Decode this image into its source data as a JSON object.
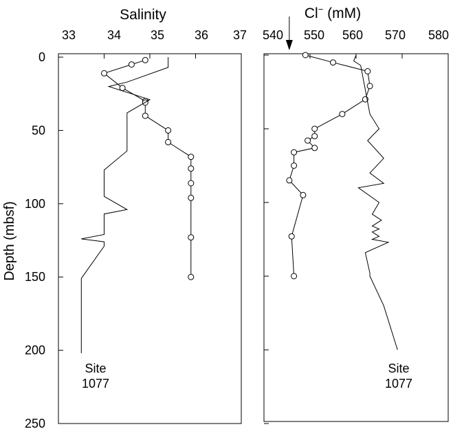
{
  "figure": {
    "ylabel": "Depth (mbsf)",
    "yticks": [
      0,
      50,
      100,
      150,
      200,
      250
    ]
  },
  "chart_data": [
    {
      "type": "line",
      "title": "",
      "xlabel": "Salinity",
      "ylabel": "Depth (mbsf)",
      "xlim": [
        33,
        37
      ],
      "ylim": [
        0,
        250
      ],
      "y_inverted": true,
      "x_axis_position": "top",
      "xticks": [
        33,
        34,
        35,
        36,
        37
      ],
      "grid": false,
      "annotation": {
        "line1": "Site",
        "line2": "1077"
      },
      "series": [
        {
          "marker": "open-circle",
          "points": [
            {
              "x": 34.9,
              "y": 2
            },
            {
              "x": 34.6,
              "y": 5
            },
            {
              "x": 34.0,
              "y": 11
            },
            {
              "x": 34.4,
              "y": 21
            },
            {
              "x": 34.9,
              "y": 30
            },
            {
              "x": 34.9,
              "y": 31
            },
            {
              "x": 34.9,
              "y": 40
            },
            {
              "x": 35.4,
              "y": 50
            },
            {
              "x": 35.4,
              "y": 58
            },
            {
              "x": 35.9,
              "y": 68
            },
            {
              "x": 35.9,
              "y": 76
            },
            {
              "x": 35.9,
              "y": 86
            },
            {
              "x": 35.9,
              "y": 96
            },
            {
              "x": 35.9,
              "y": 123
            },
            {
              "x": 35.9,
              "y": 150
            }
          ]
        },
        {
          "marker": "none",
          "points": [
            {
              "x": 35.4,
              "y": 0
            },
            {
              "x": 35.4,
              "y": 7
            },
            {
              "x": 34.5,
              "y": 17
            },
            {
              "x": 34.1,
              "y": 20
            },
            {
              "x": 35.0,
              "y": 29
            },
            {
              "x": 34.5,
              "y": 38
            },
            {
              "x": 34.5,
              "y": 64
            },
            {
              "x": 34.0,
              "y": 77
            },
            {
              "x": 34.0,
              "y": 95
            },
            {
              "x": 34.5,
              "y": 104
            },
            {
              "x": 34.0,
              "y": 107
            },
            {
              "x": 34.0,
              "y": 121
            },
            {
              "x": 33.5,
              "y": 124
            },
            {
              "x": 34.0,
              "y": 126
            },
            {
              "x": 34.0,
              "y": 129
            },
            {
              "x": 33.5,
              "y": 151
            },
            {
              "x": 33.5,
              "y": 202
            }
          ]
        }
      ]
    },
    {
      "type": "line",
      "title": "",
      "xlabel": "Cl⁻ (mM)",
      "ylabel": "Depth (mbsf)",
      "xlim": [
        540,
        580
      ],
      "ylim": [
        0,
        250
      ],
      "y_inverted": true,
      "x_axis_position": "top",
      "xticks": [
        540,
        550,
        560,
        570,
        580
      ],
      "grid": false,
      "arrow_marker_at": 545.5,
      "annotation": {
        "line1": "Site",
        "line2": "1077"
      },
      "series": [
        {
          "marker": "open-circle",
          "points": [
            {
              "x": 549,
              "y": 0
            },
            {
              "x": 555,
              "y": 5
            },
            {
              "x": 562.5,
              "y": 11
            },
            {
              "x": 563,
              "y": 21
            },
            {
              "x": 562,
              "y": 30
            },
            {
              "x": 557,
              "y": 40
            },
            {
              "x": 551,
              "y": 50
            },
            {
              "x": 551,
              "y": 55
            },
            {
              "x": 549.5,
              "y": 58
            },
            {
              "x": 551,
              "y": 63
            },
            {
              "x": 546.5,
              "y": 66
            },
            {
              "x": 546.5,
              "y": 75
            },
            {
              "x": 545.5,
              "y": 85
            },
            {
              "x": 548.5,
              "y": 95
            },
            {
              "x": 546,
              "y": 123
            },
            {
              "x": 546.5,
              "y": 150
            }
          ]
        },
        {
          "marker": "none",
          "points": [
            {
              "x": 560,
              "y": 0
            },
            {
              "x": 559.5,
              "y": 4
            },
            {
              "x": 561,
              "y": 7
            },
            {
              "x": 563,
              "y": 40
            },
            {
              "x": 565,
              "y": 50
            },
            {
              "x": 562.5,
              "y": 58
            },
            {
              "x": 566,
              "y": 70
            },
            {
              "x": 563,
              "y": 80
            },
            {
              "x": 566,
              "y": 87
            },
            {
              "x": 560.5,
              "y": 90
            },
            {
              "x": 565,
              "y": 100
            },
            {
              "x": 563.5,
              "y": 108
            },
            {
              "x": 565.5,
              "y": 112
            },
            {
              "x": 563.5,
              "y": 116
            },
            {
              "x": 565,
              "y": 118
            },
            {
              "x": 563.5,
              "y": 120
            },
            {
              "x": 565,
              "y": 123
            },
            {
              "x": 563.5,
              "y": 125
            },
            {
              "x": 567,
              "y": 127
            },
            {
              "x": 562,
              "y": 134
            },
            {
              "x": 563,
              "y": 148
            },
            {
              "x": 563,
              "y": 150
            },
            {
              "x": 566,
              "y": 170
            },
            {
              "x": 569,
              "y": 200
            }
          ]
        }
      ]
    }
  ]
}
